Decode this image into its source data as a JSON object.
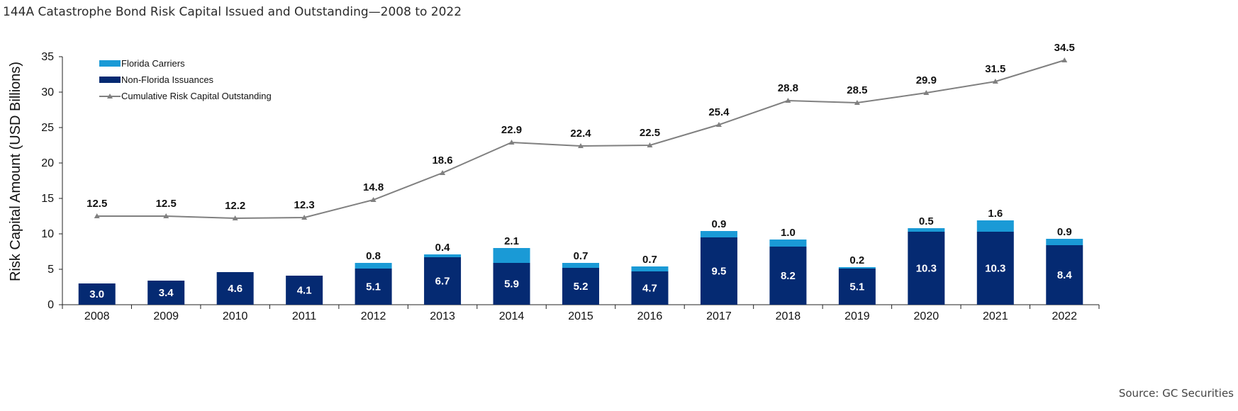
{
  "title": "144A Catastrophe Bond Risk Capital Issued and Outstanding—2008 to 2022",
  "source": "Source: GC Securities",
  "colors": {
    "florida": "#1a9ad6",
    "non_florida": "#052a72",
    "line": "#808080"
  },
  "chart_data": {
    "type": "bar",
    "stacked": true,
    "categories": [
      "2008",
      "2009",
      "2010",
      "2011",
      "2012",
      "2013",
      "2014",
      "2015",
      "2016",
      "2017",
      "2018",
      "2019",
      "2020",
      "2021",
      "2022"
    ],
    "series": [
      {
        "name": "Non-Florida Issuances",
        "type": "bar",
        "values": [
          3.0,
          3.4,
          4.6,
          4.1,
          5.1,
          6.7,
          5.9,
          5.2,
          4.7,
          9.5,
          8.2,
          5.1,
          10.3,
          10.3,
          8.4
        ],
        "labels": [
          "3.0",
          "3.4",
          "4.6",
          "4.1",
          "5.1",
          "6.7",
          "5.9",
          "5.2",
          "4.7",
          "9.5",
          "8.2",
          "5.1",
          "10.3",
          "10.3",
          "8.4"
        ]
      },
      {
        "name": "Florida Carriers",
        "type": "bar",
        "values": [
          0,
          0,
          0,
          0,
          0.8,
          0.4,
          2.1,
          0.7,
          0.7,
          0.9,
          1.0,
          0.2,
          0.5,
          1.6,
          0.9
        ],
        "labels": [
          "",
          "",
          "",
          "",
          "0.8",
          "0.4",
          "2.1",
          "0.7",
          "0.7",
          "0.9",
          "1.0",
          "0.2",
          "0.5",
          "1.6",
          "0.9"
        ]
      },
      {
        "name": "Cumulative Risk Capital Outstanding",
        "type": "line",
        "values": [
          12.5,
          12.5,
          12.2,
          12.3,
          14.8,
          18.6,
          22.9,
          22.4,
          22.5,
          25.4,
          28.8,
          28.5,
          29.9,
          31.5,
          34.5
        ],
        "labels": [
          "12.5",
          "12.5",
          "12.2",
          "12.3",
          "14.8",
          "18.6",
          "22.9",
          "22.4",
          "22.5",
          "25.4",
          "28.8",
          "28.5",
          "29.9",
          "31.5",
          "34.5"
        ]
      }
    ],
    "ylabel": "Risk Capital Amount (USD Billions)",
    "ylim": [
      0,
      35
    ],
    "yticks": [
      "0",
      "5",
      "10",
      "15",
      "20",
      "25",
      "30",
      "35"
    ],
    "legend_position": "top-left",
    "grid": false
  }
}
